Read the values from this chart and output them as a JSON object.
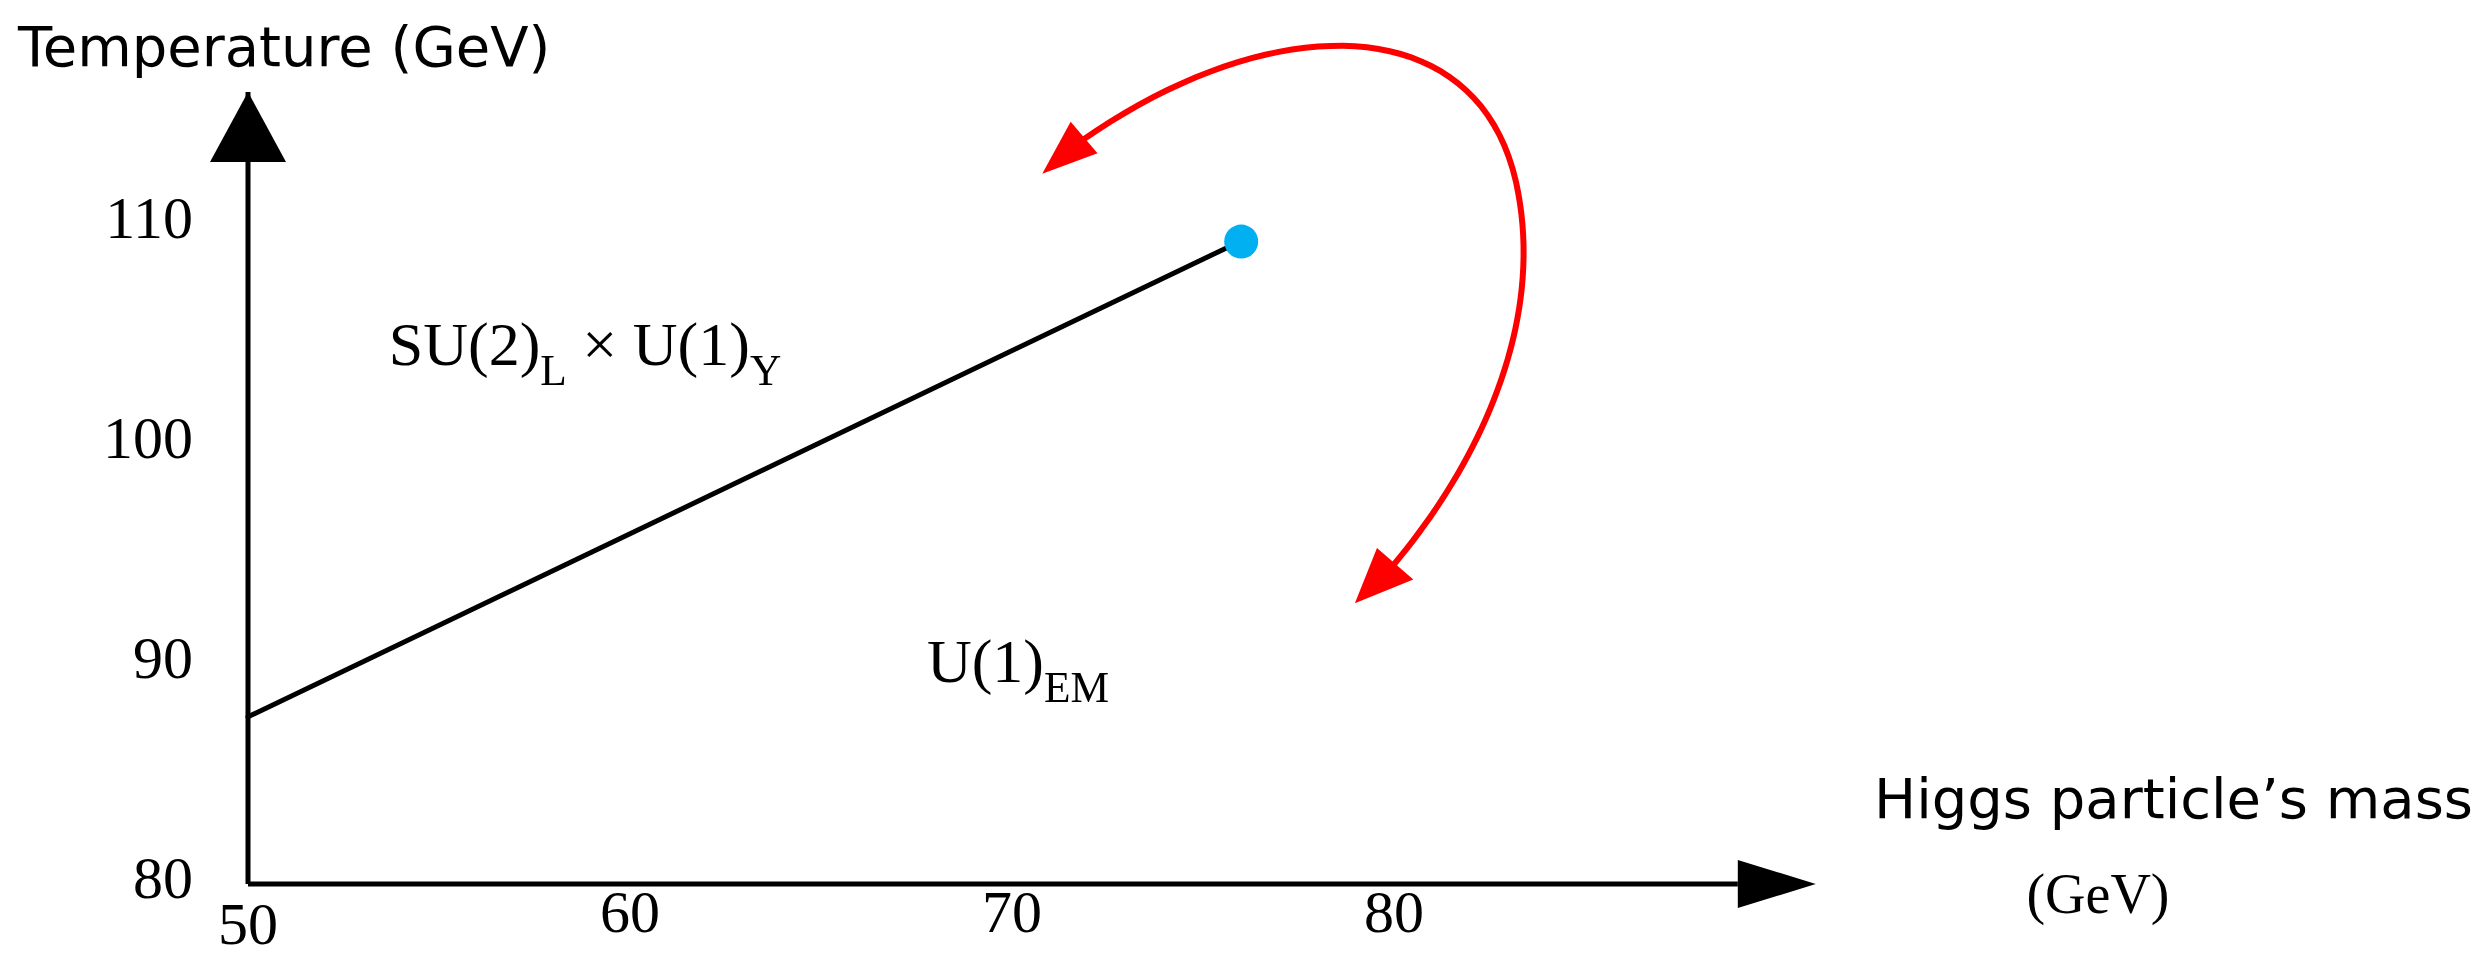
{
  "chart_data": {
    "type": "line",
    "xlabel": "Higgs particle’s mass (GeV)",
    "ylabel": "Temperature (GeV)",
    "xlim": [
      50,
      89
    ],
    "ylim": [
      80,
      116
    ],
    "xticks": [
      50,
      60,
      70,
      80
    ],
    "yticks": [
      80,
      90,
      100,
      110
    ],
    "grid": false,
    "line_style": "solid",
    "series": [
      {
        "color": "#000000",
        "marker": "none",
        "x": [
          50,
          75.6
        ],
        "values": [
          87.6,
          108.9
        ]
      },
      {
        "type": "scatter",
        "color": "#00b0f0",
        "marker": "circle",
        "x": [
          76
        ],
        "values": [
          109.2
        ]
      }
    ],
    "annotations": [
      "SU(2)$_{L}$ × U(1)$_{Y}$",
      "U(1)$_{EM}$"
    ]
  }
}
